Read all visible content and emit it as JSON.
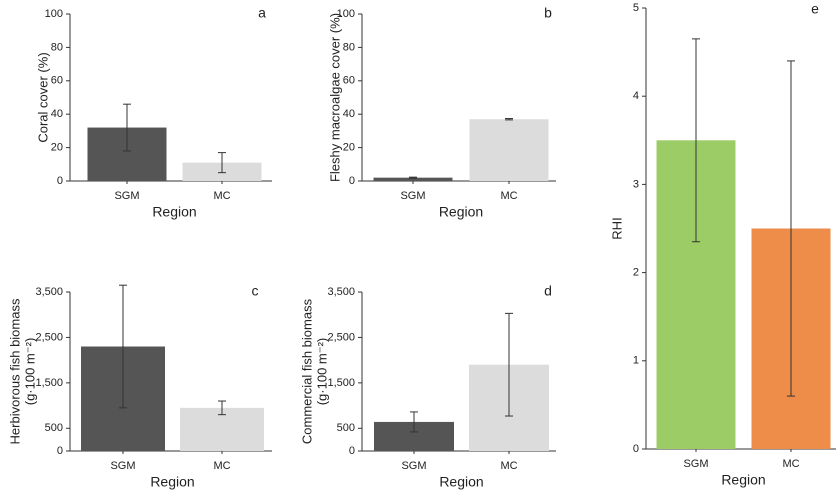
{
  "chart_data": [
    {
      "type": "bar",
      "label": "a",
      "ylabel": "Coral cover (%)",
      "xlabel": "Region",
      "categories": [
        "SGM",
        "MC"
      ],
      "values": [
        32,
        11
      ],
      "errors": [
        14,
        6
      ],
      "colors": [
        "#555555",
        "#dcdcdc"
      ],
      "ylim": [
        0,
        100
      ],
      "yticks": [
        0,
        20,
        40,
        60,
        80,
        100
      ]
    },
    {
      "type": "bar",
      "label": "b",
      "ylabel": "Fleshy macroalgae cover (%)",
      "xlabel": "Region",
      "categories": [
        "SGM",
        "MC"
      ],
      "values": [
        2,
        37
      ],
      "errors": [
        0.3,
        0.4
      ],
      "colors": [
        "#555555",
        "#dcdcdc"
      ],
      "ylim": [
        0,
        100
      ],
      "yticks": [
        0,
        20,
        40,
        60,
        80,
        100
      ]
    },
    {
      "type": "bar",
      "label": "c",
      "ylabel": [
        "Herbivorous fish biomass",
        "(g·100 m⁻²)"
      ],
      "xlabel": "Region",
      "categories": [
        "SGM",
        "MC"
      ],
      "values": [
        2300,
        950
      ],
      "errors": [
        1350,
        150
      ],
      "colors": [
        "#555555",
        "#dcdcdc"
      ],
      "ylim": [
        0,
        3500
      ],
      "yticks": [
        0,
        500,
        {
          "value": 1500,
          "label": "1,500"
        },
        {
          "value": 2500,
          "label": "2,500"
        },
        {
          "value": 3500,
          "label": "3,500"
        }
      ]
    },
    {
      "type": "bar",
      "label": "d",
      "ylabel": [
        "Commercial fish biomass",
        "(g·100 m⁻²)"
      ],
      "xlabel": "Region",
      "categories": [
        "SGM",
        "MC"
      ],
      "values": [
        640,
        1900
      ],
      "errors": [
        220,
        1130
      ],
      "colors": [
        "#555555",
        "#dcdcdc"
      ],
      "ylim": [
        0,
        3500
      ],
      "yticks": [
        0,
        500,
        {
          "value": 1500,
          "label": "1,500"
        },
        {
          "value": 2500,
          "label": "2,500"
        },
        {
          "value": 3500,
          "label": "3,500"
        }
      ]
    },
    {
      "type": "bar",
      "label": "e",
      "ylabel": "RHI",
      "xlabel": "Region",
      "categories": [
        "SGM",
        "MC"
      ],
      "values": [
        3.5,
        2.5
      ],
      "errors": [
        1.15,
        1.9
      ],
      "colors": [
        "#9ccc65",
        "#ee8c4a"
      ],
      "ylim": [
        0,
        5
      ],
      "yticks": [
        0,
        1,
        2,
        3,
        4,
        5
      ]
    }
  ]
}
